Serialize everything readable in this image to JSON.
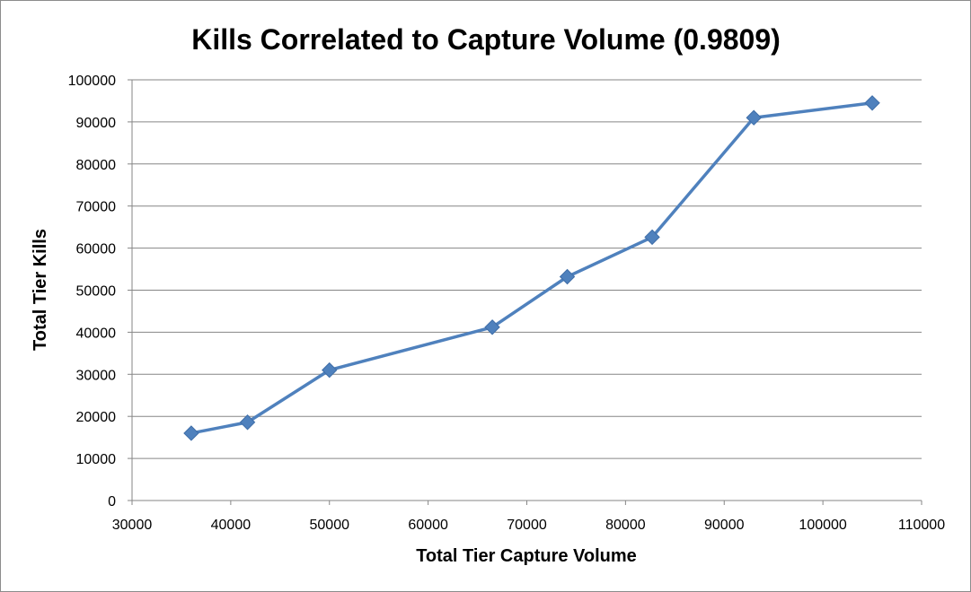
{
  "chart_data": {
    "type": "scatter",
    "title": "Kills Correlated to Capture Volume (0.9809)",
    "xlabel": "Total Tier Capture Volume",
    "ylabel": "Total Tier Kills",
    "xlim": [
      30000,
      110000
    ],
    "ylim": [
      0,
      100000
    ],
    "x_ticks": [
      "30000",
      "40000",
      "50000",
      "60000",
      "70000",
      "80000",
      "90000",
      "100000",
      "110000"
    ],
    "y_ticks": [
      "0",
      "10000",
      "20000",
      "30000",
      "40000",
      "50000",
      "60000",
      "70000",
      "80000",
      "90000",
      "100000"
    ],
    "grid": "horizontal",
    "legend": "none",
    "line_color": "#4f81bd",
    "marker": "diamond",
    "connected": true,
    "series": [
      {
        "x": [
          36000,
          41700,
          50000,
          66500,
          74100,
          82700,
          93000,
          105000
        ],
        "y": [
          16000,
          18600,
          31000,
          41200,
          53200,
          62600,
          91000,
          94500
        ]
      }
    ]
  }
}
